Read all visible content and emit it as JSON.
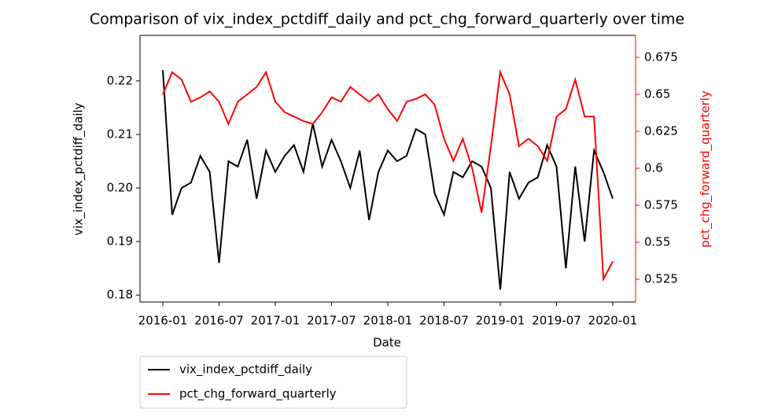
{
  "chart_data": {
    "type": "line",
    "title": "Comparison of vix_index_pctdiff_daily and pct_chg_forward_quarterly over time",
    "x_label": "Date",
    "y_label": "vix_index_pctdiff_daily",
    "y2_label": "pct_chg_forward_quarterly",
    "x": [
      "2016-01",
      "2016-02",
      "2016-03",
      "2016-04",
      "2016-05",
      "2016-06",
      "2016-07",
      "2016-08",
      "2016-09",
      "2016-10",
      "2016-11",
      "2016-12",
      "2017-01",
      "2017-02",
      "2017-03",
      "2017-04",
      "2017-05",
      "2017-06",
      "2017-07",
      "2017-08",
      "2017-09",
      "2017-10",
      "2017-11",
      "2017-12",
      "2018-01",
      "2018-02",
      "2018-03",
      "2018-04",
      "2018-05",
      "2018-06",
      "2018-07",
      "2018-08",
      "2018-09",
      "2018-10",
      "2018-11",
      "2018-12",
      "2019-01",
      "2019-02",
      "2019-03",
      "2019-04",
      "2019-05",
      "2019-06",
      "2019-07",
      "2019-08",
      "2019-09",
      "2019-10",
      "2019-11",
      "2019-12",
      "2020-01"
    ],
    "series": [
      {
        "name": "vix_index_pctdiff_daily",
        "color": "#000000",
        "values": [
          0.222,
          0.195,
          0.2,
          0.201,
          0.206,
          0.203,
          0.186,
          0.205,
          0.204,
          0.209,
          0.198,
          0.207,
          0.203,
          0.206,
          0.208,
          0.203,
          0.212,
          0.204,
          0.209,
          0.205,
          0.2,
          0.207,
          0.194,
          0.203,
          0.207,
          0.205,
          0.206,
          0.211,
          0.21,
          0.199,
          0.195,
          0.203,
          0.202,
          0.205,
          0.204,
          0.2,
          0.181,
          0.203,
          0.198,
          0.201,
          0.202,
          0.208,
          0.204,
          0.185,
          0.204,
          0.19,
          0.207,
          0.203,
          0.198
        ]
      },
      {
        "name": "pct_chg_forward_quarterly",
        "color": "#ff0000",
        "axis": "y2",
        "values": [
          0.65,
          0.665,
          0.66,
          0.645,
          0.648,
          0.652,
          0.645,
          0.63,
          0.645,
          0.65,
          0.655,
          0.665,
          0.645,
          0.638,
          0.635,
          0.632,
          0.63,
          0.638,
          0.648,
          0.645,
          0.655,
          0.65,
          0.645,
          0.65,
          0.64,
          0.632,
          0.645,
          0.647,
          0.65,
          0.643,
          0.62,
          0.605,
          0.62,
          0.6,
          0.57,
          0.615,
          0.665,
          0.65,
          0.615,
          0.62,
          0.615,
          0.605,
          0.635,
          0.64,
          0.66,
          0.635,
          0.635,
          0.525,
          0.537
        ]
      }
    ],
    "xlim": [
      "2016-01",
      "2020-01"
    ],
    "xticks": [
      "2016-01",
      "2016-07",
      "2017-01",
      "2017-07",
      "2018-01",
      "2018-07",
      "2019-01",
      "2019-07",
      "2020-01"
    ],
    "ylim": [
      0.1787,
      0.2285
    ],
    "yticks": [
      {
        "value": 0.18,
        "label": "0.18"
      },
      {
        "value": 0.19,
        "label": "0.19"
      },
      {
        "value": 0.2,
        "label": "0.20"
      },
      {
        "value": 0.21,
        "label": "0.21"
      },
      {
        "value": 0.22,
        "label": "0.22"
      }
    ],
    "y2lim": [
      0.5096,
      0.6899
    ],
    "y2ticks": [
      0.525,
      0.55,
      0.575,
      0.6,
      0.625,
      0.65,
      0.675
    ],
    "y2_color": "#ff0000",
    "grid": false,
    "legend": "below"
  }
}
